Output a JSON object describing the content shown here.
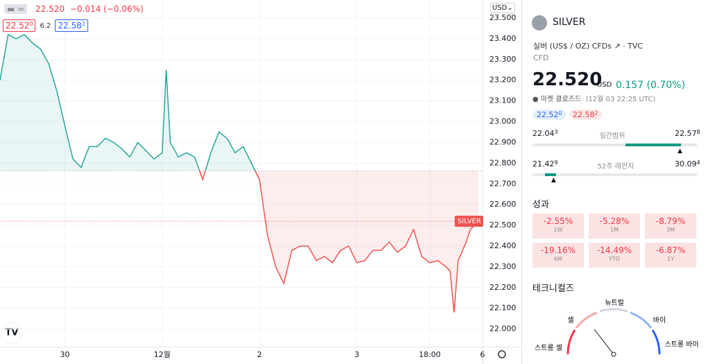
{
  "toolbar": {
    "price": "22.520",
    "change": "−0.014 (−0.06%)",
    "sell": "22.52",
    "sell_sup": "0",
    "spread": "6.2",
    "buy": "22.58",
    "buy_sup": "2",
    "currency": "USD"
  },
  "chart_data": {
    "type": "line",
    "x": [
      -16,
      -14,
      -12,
      -10,
      -8,
      -6,
      -4,
      -2,
      0,
      2,
      4,
      6,
      8,
      10,
      12,
      14,
      16,
      18,
      20,
      22,
      24,
      25,
      26,
      28,
      30,
      32,
      34,
      36,
      38,
      40,
      42,
      44,
      46,
      48,
      50,
      52,
      54,
      56,
      58,
      60,
      62,
      64,
      66,
      68,
      70,
      72,
      74,
      76,
      78,
      80,
      82,
      84,
      86,
      88,
      90,
      92,
      94,
      95,
      96,
      97,
      99,
      100,
      102
    ],
    "series": [
      {
        "name": "SILVER",
        "values": [
          23.2,
          23.42,
          23.4,
          23.42,
          23.38,
          23.35,
          23.28,
          23.15,
          22.98,
          22.82,
          22.78,
          22.88,
          22.88,
          22.92,
          22.9,
          22.87,
          22.83,
          22.9,
          22.86,
          22.82,
          22.85,
          23.25,
          22.9,
          22.83,
          22.85,
          22.83,
          22.72,
          22.85,
          22.95,
          22.92,
          22.85,
          22.88,
          22.8,
          22.72,
          22.45,
          22.3,
          22.22,
          22.38,
          22.4,
          22.4,
          22.33,
          22.35,
          22.32,
          22.38,
          22.4,
          22.32,
          22.33,
          22.38,
          22.38,
          22.42,
          22.37,
          22.4,
          22.48,
          22.35,
          22.32,
          22.33,
          22.3,
          22.28,
          22.08,
          22.33,
          22.42,
          22.48,
          22.52
        ]
      }
    ],
    "up_color": "#26a69a",
    "down_color": "#ef5350",
    "baseline": 22.763,
    "xlim": [
      -16,
      103
    ],
    "xticks": [
      {
        "value": 0,
        "label": "30"
      },
      {
        "value": 24,
        "label": "12월"
      },
      {
        "value": 48,
        "label": "2"
      },
      {
        "value": 72,
        "label": "3"
      },
      {
        "value": 90,
        "label": "18:00"
      },
      {
        "value": 103,
        "label": "6"
      }
    ],
    "ylim": [
      21.915,
      23.587
    ],
    "yticks": [
      {
        "value": 22.0,
        "label": "22.000"
      },
      {
        "value": 22.1,
        "label": "22.100"
      },
      {
        "value": 22.2,
        "label": "22.200"
      },
      {
        "value": 22.3,
        "label": "22.300"
      },
      {
        "value": 22.4,
        "label": "22.400"
      },
      {
        "value": 22.5,
        "label": "22.500"
      },
      {
        "value": 22.6,
        "label": "22.600"
      },
      {
        "value": 22.7,
        "label": "22.700"
      },
      {
        "value": 22.8,
        "label": "22.800"
      },
      {
        "value": 22.9,
        "label": "22.900"
      },
      {
        "value": 23.0,
        "label": "23.000"
      },
      {
        "value": 23.1,
        "label": "23.100"
      },
      {
        "value": 23.2,
        "label": "23.200"
      },
      {
        "value": 23.3,
        "label": "23.300"
      },
      {
        "value": 23.4,
        "label": "23.400"
      },
      {
        "value": 23.5,
        "label": "23.500"
      }
    ]
  },
  "panel": {
    "symbol": "SILVER",
    "description": "실버 (US$ / OZ) CFDs",
    "source": "TVC",
    "kind": "CFD",
    "price": "22.520",
    "currency": "USD",
    "change": "0.157 (0.70%)",
    "status": "마켓 클로즈드",
    "time": "(12월 03 22:25 UTC)",
    "bid": "22.52",
    "bid_sup": "0",
    "ask": "22.58",
    "ask_sup": "2",
    "day_low": "22.04",
    "day_low_sup": "3",
    "day_label": "일간범위",
    "day_high": "22.57",
    "day_high_sup": "8",
    "year_low": "21.42",
    "year_low_sup": "9",
    "year_label": "52주 레인지",
    "year_high": "30.09",
    "year_high_sup": "4",
    "performance_title": "성과",
    "performance": [
      {
        "value": "-2.55%",
        "period": "1W"
      },
      {
        "value": "-5.28%",
        "period": "1M"
      },
      {
        "value": "-8.79%",
        "period": "3M"
      },
      {
        "value": "-19.16%",
        "period": "6M"
      },
      {
        "value": "-14.49%",
        "period": "YTD"
      },
      {
        "value": "-6.87%",
        "period": "1Y"
      }
    ],
    "technicals_title": "테크니컬즈",
    "gauge": {
      "neutral": "뉴트럴",
      "sell": "셀",
      "buy": "바이",
      "strong_sell": "스트롱 셀",
      "strong_buy": "스트롱 바이"
    }
  }
}
